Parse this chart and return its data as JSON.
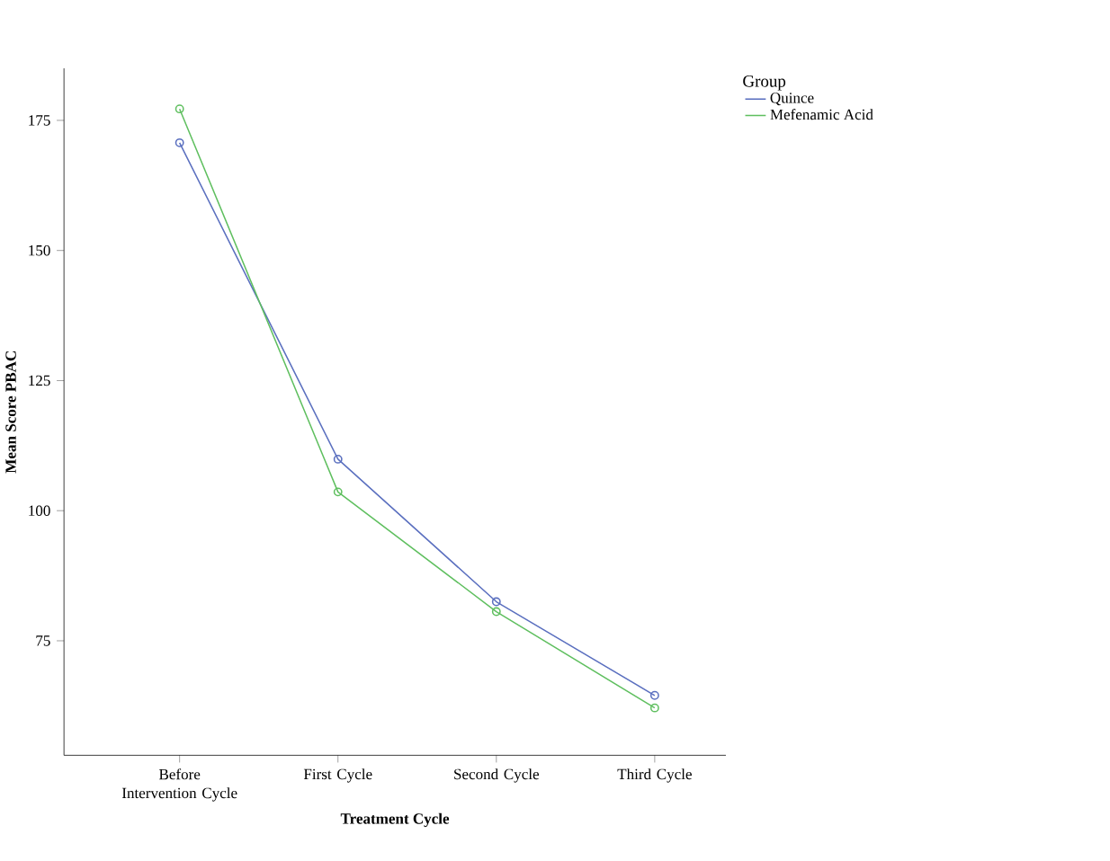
{
  "chart_data": {
    "type": "line",
    "xlabel": "Treatment Cycle",
    "ylabel": "Mean Score PBAC",
    "legend_title": "Group",
    "categories": [
      "Before Intervention Cycle",
      "First Cycle",
      "Second Cycle",
      "Third Cycle"
    ],
    "series": [
      {
        "name": "Quince",
        "color": "#5a6fbf",
        "values": [
          170.7,
          109.9,
          82.5,
          64.5
        ]
      },
      {
        "name": "Mefenamic Acid",
        "color": "#5fbf5f",
        "values": [
          177.2,
          103.6,
          80.6,
          62.1
        ]
      }
    ],
    "ylim": [
      53,
      185
    ],
    "yticks": [
      75,
      100,
      125,
      150,
      175
    ],
    "marker": "circle",
    "legend": "top right",
    "grid": false
  }
}
